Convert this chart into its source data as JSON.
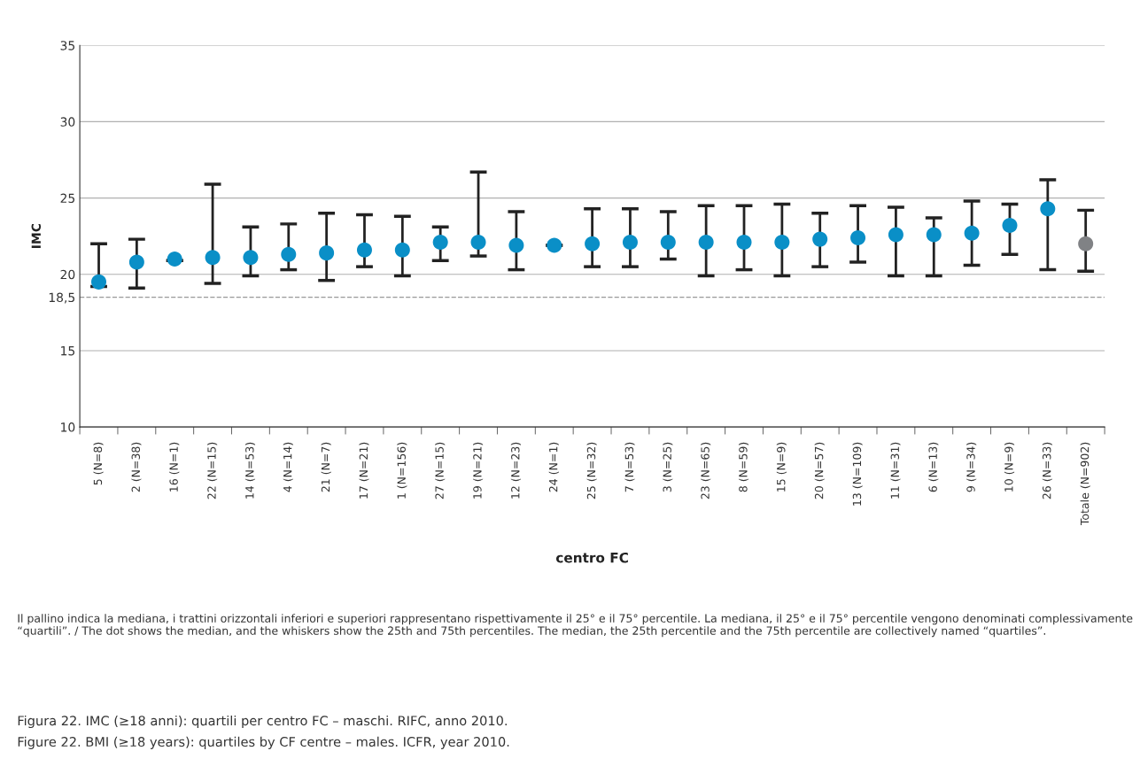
{
  "chart_data": {
    "type": "scatter",
    "xlabel": "centro FC",
    "ylabel": "IMC",
    "categories": [
      "5 (N=8)",
      "2 (N=38)",
      "16 (N=1)",
      "22 (N=15)",
      "14 (N=53)",
      "4 (N=14)",
      "21 (N=7)",
      "17 (N=21)",
      "1 (N=156)",
      "27 (N=15)",
      "19 (N=21)",
      "12 (N=23)",
      "24 (N=1)",
      "25 (N=32)",
      "7 (N=53)",
      "3 (N=25)",
      "23 (N=65)",
      "8 (N=59)",
      "15 (N=9)",
      "20 (N=57)",
      "13 (N=109)",
      "11 (N=31)",
      "6 (N=13)",
      "9 (N=34)",
      "10 (N=9)",
      "26 (N=33)",
      "Totale (N=902)"
    ],
    "values": [
      19.5,
      20.8,
      21.0,
      21.1,
      21.1,
      21.3,
      21.4,
      21.6,
      21.6,
      22.1,
      22.1,
      21.9,
      21.9,
      22.0,
      22.1,
      22.1,
      22.1,
      22.1,
      22.1,
      22.3,
      22.4,
      22.6,
      22.6,
      22.7,
      23.2,
      24.3,
      22.0
    ],
    "errors": [
      [
        19.2,
        22.0
      ],
      [
        19.1,
        22.3
      ],
      [
        20.9,
        20.9
      ],
      [
        19.4,
        25.9
      ],
      [
        19.9,
        23.1
      ],
      [
        20.3,
        23.3
      ],
      [
        19.6,
        24.0
      ],
      [
        20.5,
        23.9
      ],
      [
        19.9,
        23.8
      ],
      [
        20.9,
        23.1
      ],
      [
        21.2,
        26.7
      ],
      [
        20.3,
        24.1
      ],
      [
        21.9,
        21.9
      ],
      [
        20.5,
        24.3
      ],
      [
        20.5,
        24.3
      ],
      [
        21.0,
        24.1
      ],
      [
        19.9,
        24.5
      ],
      [
        20.3,
        24.5
      ],
      [
        19.9,
        24.6
      ],
      [
        20.5,
        24.0
      ],
      [
        20.8,
        24.5
      ],
      [
        19.9,
        24.4
      ],
      [
        19.9,
        23.7
      ],
      [
        20.6,
        24.8
      ],
      [
        21.3,
        24.6
      ],
      [
        20.3,
        26.2
      ],
      [
        20.2,
        24.2
      ]
    ],
    "colors": [
      "#0a8fc7",
      "#0a8fc7",
      "#0a8fc7",
      "#0a8fc7",
      "#0a8fc7",
      "#0a8fc7",
      "#0a8fc7",
      "#0a8fc7",
      "#0a8fc7",
      "#0a8fc7",
      "#0a8fc7",
      "#0a8fc7",
      "#0a8fc7",
      "#0a8fc7",
      "#0a8fc7",
      "#0a8fc7",
      "#0a8fc7",
      "#0a8fc7",
      "#0a8fc7",
      "#0a8fc7",
      "#0a8fc7",
      "#0a8fc7",
      "#0a8fc7",
      "#0a8fc7",
      "#0a8fc7",
      "#0a8fc7",
      "#808285"
    ],
    "marker": "circle",
    "ylim": [
      10,
      35
    ],
    "yticks": [
      10,
      15,
      20,
      {
        "value": 18.5,
        "label": "18,5"
      },
      25,
      30,
      35
    ],
    "grid": "y",
    "ref_lines": [
      {
        "axis": "y",
        "value": 18.5,
        "color": "#999999",
        "line_style": "dashed"
      }
    ],
    "annotations": [
      "Il pallino indica la mediana, i trattini orizzontali inferiori e superiori rappresentano rispettivamente il 25° e il 75° percentile. La mediana, il 25° e il 75° percentile vengono denominati complessivamente “quartili”. / The dot shows the median, and the whiskers show the 25th and 75th percentiles. The median, the 25th percentile and the 75th percentile are collectively named “quartiles”.",
      "Figura 22. IMC (≥18 anni): quartili per centro FC – maschi. RIFC, anno 2010.",
      "Figure 22. BMI (≥18 years): quartiles by CF centre – males. ICFR, year 2010."
    ]
  }
}
